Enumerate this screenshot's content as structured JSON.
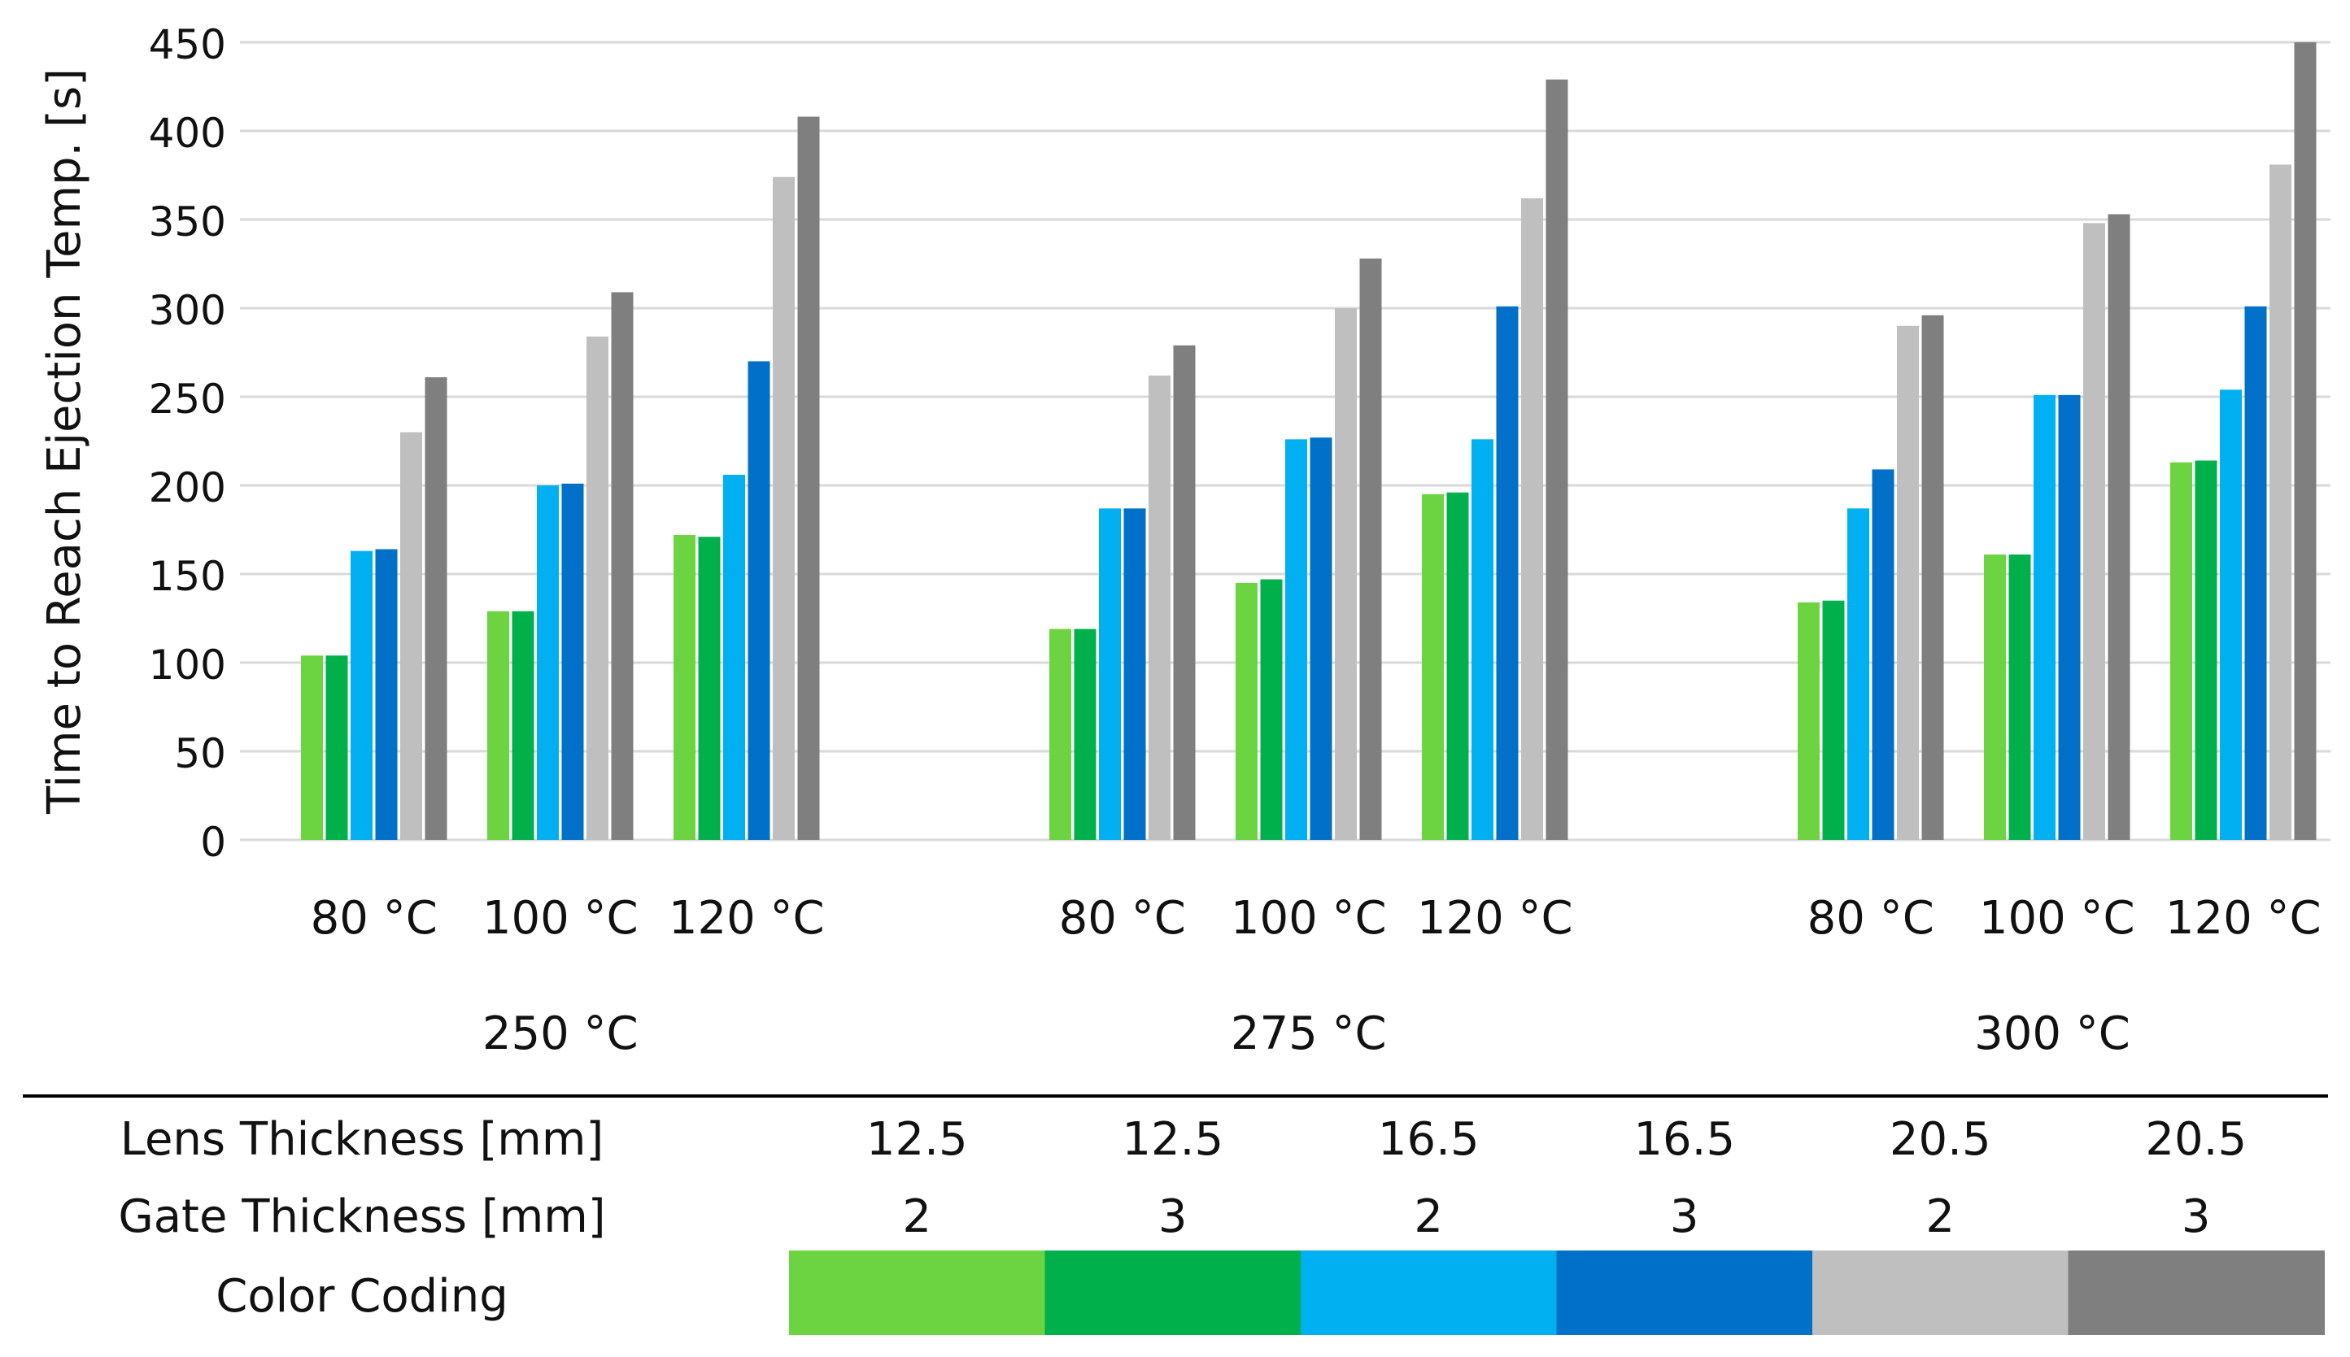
{
  "chart_data": {
    "type": "bar",
    "title": "",
    "ylabel": "Time to Reach Ejection Temp. [s]",
    "xlabel": "",
    "ylim": [
      0,
      450
    ],
    "yticks": [
      "0",
      "50",
      "100",
      "150",
      "200",
      "250",
      "300",
      "350",
      "400",
      "450"
    ],
    "grid": true,
    "groups": [
      {
        "label": "250 °C",
        "subgroups": [
          {
            "label": "80 °C",
            "values": [
              104,
              104,
              163,
              164,
              230,
              261
            ]
          },
          {
            "label": "100 °C",
            "values": [
              129,
              129,
              200,
              201,
              284,
              309
            ]
          },
          {
            "label": "120 °C",
            "values": [
              172,
              171,
              206,
              270,
              374,
              408
            ]
          }
        ]
      },
      {
        "label": "275 °C",
        "subgroups": [
          {
            "label": "80 °C",
            "values": [
              119,
              119,
              187,
              187,
              262,
              279
            ]
          },
          {
            "label": "100 °C",
            "values": [
              145,
              147,
              226,
              227,
              300,
              328
            ]
          },
          {
            "label": "120 °C",
            "values": [
              195,
              196,
              226,
              301,
              362,
              429
            ]
          }
        ]
      },
      {
        "label": "300 °C",
        "subgroups": [
          {
            "label": "80 °C",
            "values": [
              134,
              135,
              187,
              209,
              290,
              296
            ]
          },
          {
            "label": "100 °C",
            "values": [
              161,
              161,
              251,
              251,
              348,
              353
            ]
          },
          {
            "label": "120 °C",
            "values": [
              213,
              214,
              254,
              301,
              381,
              450
            ]
          }
        ]
      }
    ],
    "series": [
      {
        "name": "12.5 / 2",
        "lens": "12.5",
        "gate": "2",
        "color": "#6cd341"
      },
      {
        "name": "12.5 / 3",
        "lens": "12.5",
        "gate": "3",
        "color": "#00b04b"
      },
      {
        "name": "16.5 / 2",
        "lens": "16.5",
        "gate": "2",
        "color": "#00b0f0"
      },
      {
        "name": "16.5 / 3",
        "lens": "16.5",
        "gate": "3",
        "color": "#0070c8"
      },
      {
        "name": "20.5 / 2",
        "lens": "20.5",
        "gate": "2",
        "color": "#bfbfbf"
      },
      {
        "name": "20.5 / 3",
        "lens": "20.5",
        "gate": "3",
        "color": "#7f7f7f"
      }
    ],
    "legend": {
      "lens_label": "Lens Thickness [mm]",
      "gate_label": "Gate Thickness [mm]",
      "color_label": "Color Coding"
    }
  }
}
